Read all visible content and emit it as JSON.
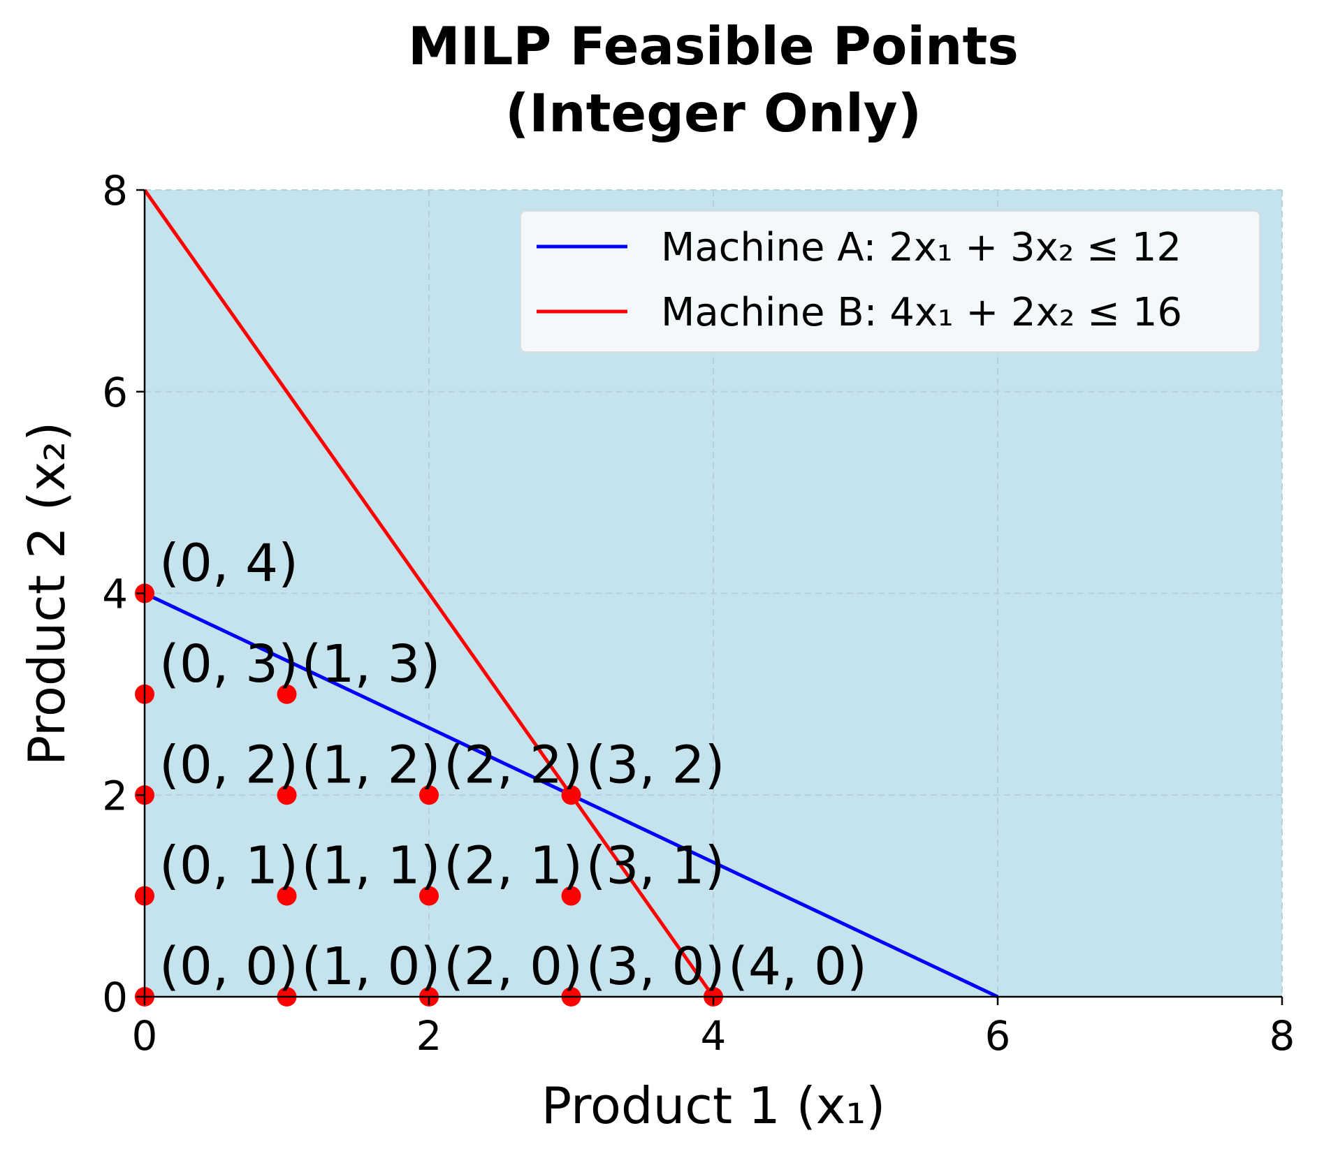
{
  "chart_data": {
    "type": "scatter",
    "title_lines": [
      "MILP Feasible Points",
      "(Integer Only)"
    ],
    "xlabel": "Product 1 (x₁)",
    "ylabel": "Product 2 (x₂)",
    "xlim": [
      0,
      8
    ],
    "ylim": [
      0,
      8
    ],
    "xticks": [
      0,
      2,
      4,
      6,
      8
    ],
    "yticks": [
      0,
      2,
      4,
      6,
      8
    ],
    "grid": true,
    "background_color": "#c5e3ed",
    "legend_position": "top-right",
    "series": [
      {
        "name": "Machine A: 2x₁ + 3x₂ ≤ 12",
        "type": "line",
        "color": "#0000ff",
        "x": [
          0,
          6
        ],
        "y": [
          4,
          0
        ]
      },
      {
        "name": "Machine B: 4x₁ + 2x₂ ≤ 16",
        "type": "line",
        "color": "#ff0000",
        "x": [
          0,
          4
        ],
        "y": [
          8,
          0
        ]
      }
    ],
    "points": {
      "color": "#ff0000",
      "data": [
        {
          "x": 0,
          "y": 0,
          "label": "(0, 0)"
        },
        {
          "x": 0,
          "y": 1,
          "label": "(0, 1)"
        },
        {
          "x": 0,
          "y": 2,
          "label": "(0, 2)"
        },
        {
          "x": 0,
          "y": 3,
          "label": "(0, 3)"
        },
        {
          "x": 0,
          "y": 4,
          "label": "(0, 4)"
        },
        {
          "x": 1,
          "y": 0,
          "label": "(1, 0)"
        },
        {
          "x": 1,
          "y": 1,
          "label": "(1, 1)"
        },
        {
          "x": 1,
          "y": 2,
          "label": "(1, 2)"
        },
        {
          "x": 1,
          "y": 3,
          "label": "(1, 3)"
        },
        {
          "x": 2,
          "y": 0,
          "label": "(2, 0)"
        },
        {
          "x": 2,
          "y": 1,
          "label": "(2, 1)"
        },
        {
          "x": 2,
          "y": 2,
          "label": "(2, 2)"
        },
        {
          "x": 3,
          "y": 0,
          "label": "(3, 0)"
        },
        {
          "x": 3,
          "y": 1,
          "label": "(3, 1)"
        },
        {
          "x": 3,
          "y": 2,
          "label": "(3, 2)"
        },
        {
          "x": 4,
          "y": 0,
          "label": "(4, 0)"
        }
      ]
    }
  }
}
